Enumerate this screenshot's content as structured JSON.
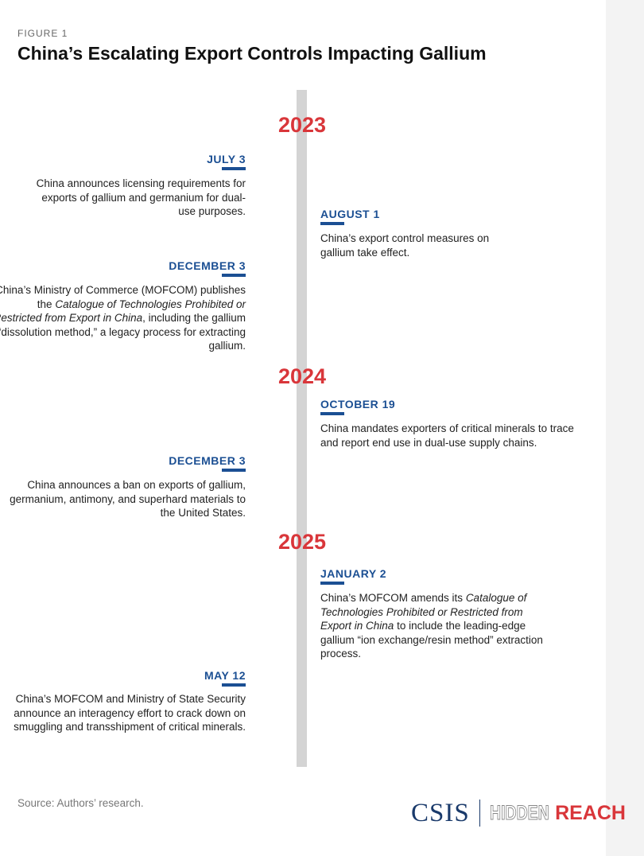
{
  "figure_label": "FIGURE 1",
  "title": "China’s Escalating Export Controls Impacting Gallium",
  "years": [
    "2023",
    "2024",
    "2025"
  ],
  "events": [
    {
      "date": "JULY 3",
      "segments": [
        {
          "text": "China announces licensing requirements for exports of gallium and germanium for dual-use purposes.",
          "italic": false
        }
      ]
    },
    {
      "date": "AUGUST 1",
      "segments": [
        {
          "text": "China’s export control measures on gallium take effect.",
          "italic": false
        }
      ]
    },
    {
      "date": "DECEMBER 3",
      "segments": [
        {
          "text": "China’s Ministry of Commerce (MOFCOM) publishes the ",
          "italic": false
        },
        {
          "text": "Catalogue of Technologies Prohibited or Restricted from Export in China",
          "italic": true
        },
        {
          "text": ", including the gallium “dissolution method,” a legacy process for extracting gallium.",
          "italic": false
        }
      ]
    },
    {
      "date": "OCTOBER 19",
      "segments": [
        {
          "text": "China mandates exporters of critical minerals to trace and report end use in dual-use supply chains.",
          "italic": false
        }
      ]
    },
    {
      "date": "DECEMBER 3",
      "segments": [
        {
          "text": "China announces a ban on exports of gallium, germanium, antimony, and superhard materials to the United States.",
          "italic": false
        }
      ]
    },
    {
      "date": "JANUARY 2",
      "segments": [
        {
          "text": "China’s MOFCOM amends its ",
          "italic": false
        },
        {
          "text": "Catalogue of Technologies Prohibited or Restricted from Export in China",
          "italic": true
        },
        {
          "text": " to include the leading-edge gallium “ion exchange/resin method” extraction process.",
          "italic": false
        }
      ]
    },
    {
      "date": "MAY 12",
      "segments": [
        {
          "text": "China’s MOFCOM and Ministry of State Security announce an interagency effort to crack down on smuggling and transshipment of critical minerals.",
          "italic": false
        }
      ]
    }
  ],
  "source": "Source: Authors’ research.",
  "logo": {
    "org": "CSIS",
    "project_a": "HIDDEN",
    "project_b": "REACH"
  }
}
